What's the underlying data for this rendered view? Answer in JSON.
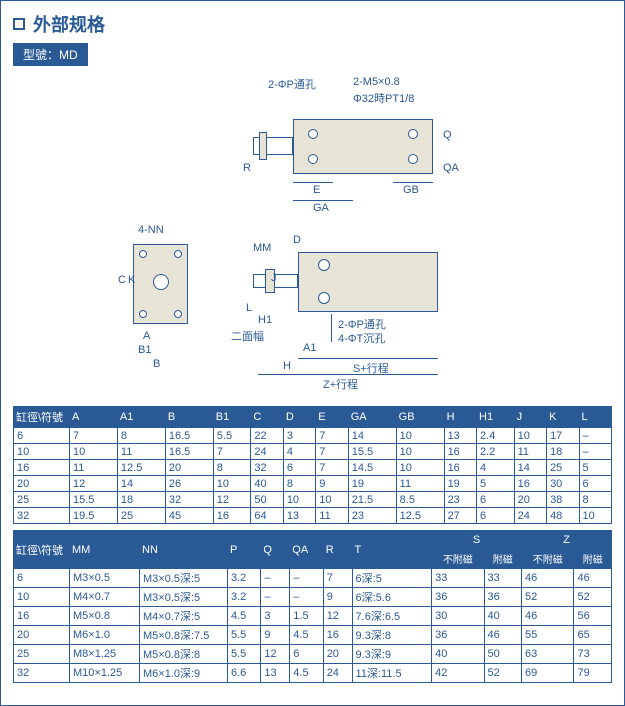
{
  "title": "外部规格",
  "model_label": "型號：MD",
  "colors": {
    "primary": "#2a5a95",
    "part_fill": "#e8e3d7",
    "background": "#ffffff"
  },
  "diagram_labels": {
    "top_hole_note": "2-ΦP通孔",
    "top_thread_note": "2-M5×0.8",
    "top_thread_sub": "Φ32時PT1/8",
    "r_label": "R",
    "e_label": "E",
    "ga_label": "GA",
    "gb_label": "GB",
    "qa_label": "QA",
    "q_label": "Q",
    "nn_label": "4-NN",
    "c_label": "C",
    "k_label": "K",
    "a_label": "A",
    "b1_label": "B1",
    "b_label": "B",
    "a1_label": "A1",
    "mm_label": "MM",
    "d_label": "D",
    "j_label": "J",
    "l_label": "L",
    "h1_label": "H1",
    "twoface": "二面幅",
    "h_label": "H",
    "s_stroke": "S+行程",
    "z_stroke": "Z+行程",
    "phi_p_bottom": "2-ΦP通孔",
    "phi_t_bottom": "4-ΦT沉孔"
  },
  "table1": {
    "headers": [
      "缸徑\\符號",
      "A",
      "A1",
      "B",
      "B1",
      "C",
      "D",
      "E",
      "GA",
      "GB",
      "H",
      "H1",
      "J",
      "K",
      "L"
    ],
    "rows": [
      [
        "6",
        "7",
        "8",
        "16.5",
        "5.5",
        "22",
        "3",
        "7",
        "14",
        "10",
        "13",
        "2.4",
        "10",
        "17",
        "–"
      ],
      [
        "10",
        "10",
        "11",
        "16.5",
        "7",
        "24",
        "4",
        "7",
        "15.5",
        "10",
        "16",
        "2.2",
        "11",
        "18",
        "–"
      ],
      [
        "16",
        "11",
        "12.5",
        "20",
        "8",
        "32",
        "6",
        "7",
        "14.5",
        "10",
        "16",
        "4",
        "14",
        "25",
        "5"
      ],
      [
        "20",
        "12",
        "14",
        "26",
        "10",
        "40",
        "8",
        "9",
        "19",
        "11",
        "19",
        "5",
        "16",
        "30",
        "6"
      ],
      [
        "25",
        "15.5",
        "18",
        "32",
        "12",
        "50",
        "10",
        "10",
        "21.5",
        "8.5",
        "23",
        "6",
        "20",
        "38",
        "8"
      ],
      [
        "32",
        "19.5",
        "25",
        "45",
        "16",
        "64",
        "13",
        "11",
        "23",
        "12.5",
        "27",
        "6",
        "24",
        "48",
        "10"
      ]
    ]
  },
  "table2": {
    "headers_row1": [
      "缸徑\\符號",
      "MM",
      "NN",
      "P",
      "Q",
      "QA",
      "R",
      "T",
      "S",
      "Z"
    ],
    "headers_row2_s": [
      "不附磁",
      "附磁"
    ],
    "headers_row2_z": [
      "不附磁",
      "附磁"
    ],
    "rows": [
      [
        "6",
        "M3×0.5",
        "M3×0.5深:5",
        "3.2",
        "–",
        "–",
        "7",
        "6深:5",
        "33",
        "33",
        "46",
        "46"
      ],
      [
        "10",
        "M4×0.7",
        "M3×0.5深:5",
        "3.2",
        "–",
        "–",
        "9",
        "6深:5.6",
        "36",
        "36",
        "52",
        "52"
      ],
      [
        "16",
        "M5×0.8",
        "M4×0.7深:5",
        "4.5",
        "3",
        "1.5",
        "12",
        "7.6深:6.5",
        "30",
        "40",
        "46",
        "56"
      ],
      [
        "20",
        "M6×1.0",
        "M5×0.8深:7.5",
        "5.5",
        "9",
        "4.5",
        "16",
        "9.3深:8",
        "36",
        "46",
        "55",
        "65"
      ],
      [
        "25",
        "M8×1.25",
        "M5×0.8深:8",
        "5.5",
        "12",
        "6",
        "20",
        "9.3深:9",
        "40",
        "50",
        "63",
        "73"
      ],
      [
        "32",
        "M10×1.25",
        "M6×1.0深:9",
        "6.6",
        "13",
        "4.5",
        "24",
        "11深:11.5",
        "42",
        "52",
        "69",
        "79"
      ]
    ]
  }
}
